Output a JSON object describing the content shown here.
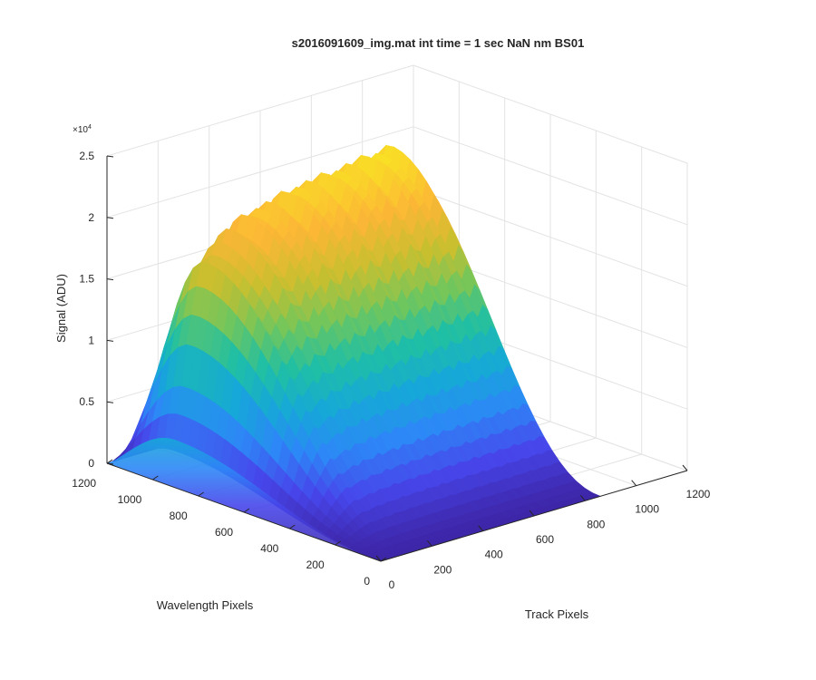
{
  "chart_data": {
    "type": "surface",
    "title": "s2016091609_img.mat int time = 1 sec  NaN nm BS01",
    "zlabel": "Signal (ADU)",
    "xlabel": "Track Pixels",
    "ylabel": "Wavelength Pixels",
    "z_exponent_label": "×10",
    "z_exponent_power": "4",
    "z_ticks": [
      "0",
      "0.5",
      "1",
      "1.5",
      "2",
      "2.5"
    ],
    "z_tick_values": [
      0,
      0.5,
      1,
      1.5,
      2,
      2.5
    ],
    "x_ticks": [
      "0",
      "200",
      "400",
      "600",
      "800",
      "1000",
      "1200"
    ],
    "x_tick_values": [
      0,
      200,
      400,
      600,
      800,
      1000,
      1200
    ],
    "y_ticks": [
      "0",
      "200",
      "400",
      "600",
      "800",
      "1000",
      "1200"
    ],
    "y_tick_values": [
      0,
      200,
      400,
      600,
      800,
      1000,
      1200
    ],
    "xlim": [
      0,
      1200
    ],
    "ylim": [
      0,
      1200
    ],
    "zlim": [
      0,
      2.5
    ],
    "grid": true,
    "colormap": "parula",
    "colormap_stops": [
      "#3e26a8",
      "#4746eb",
      "#2d87f7",
      "#16a8d8",
      "#1fbfa5",
      "#71c65c",
      "#c9bf2f",
      "#fcb636",
      "#f9df25"
    ],
    "surface_peak_envelope": [
      {
        "track": 0,
        "signal": 0.3
      },
      {
        "track": 100,
        "signal": 1.65
      },
      {
        "track": 200,
        "signal": 1.9
      },
      {
        "track": 300,
        "signal": 2.0
      },
      {
        "track": 400,
        "signal": 2.05
      },
      {
        "track": 500,
        "signal": 2.1
      },
      {
        "track": 600,
        "signal": 2.12
      },
      {
        "track": 700,
        "signal": 2.15
      },
      {
        "track": 800,
        "signal": 2.18
      },
      {
        "track": 860,
        "signal": 2.2
      }
    ],
    "peak_wavelength_pixel": 900,
    "track_extent": [
      0,
      860
    ],
    "wavelength_extent": [
      0,
      1200
    ]
  }
}
